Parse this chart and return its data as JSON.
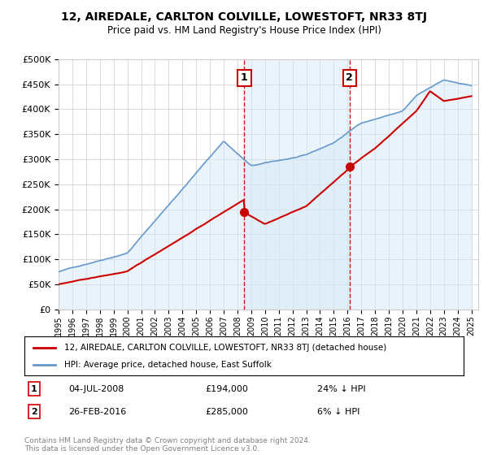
{
  "title": "12, AIREDALE, CARLTON COLVILLE, LOWESTOFT, NR33 8TJ",
  "subtitle": "Price paid vs. HM Land Registry's House Price Index (HPI)",
  "y_values": [
    0,
    50000,
    100000,
    150000,
    200000,
    250000,
    300000,
    350000,
    400000,
    450000,
    500000
  ],
  "ylim": [
    0,
    500000
  ],
  "xlim_start": 1995.0,
  "xlim_end": 2025.5,
  "marker1_x": 2008.5,
  "marker1_label": "1",
  "marker1_date": "04-JUL-2008",
  "marker1_price": "£194,000",
  "marker1_hpi": "24% ↓ HPI",
  "marker1_price_val": 194000,
  "marker2_x": 2016.15,
  "marker2_label": "2",
  "marker2_date": "26-FEB-2016",
  "marker2_price": "£285,000",
  "marker2_hpi": "6% ↓ HPI",
  "marker2_price_val": 285000,
  "legend_line1": "12, AIREDALE, CARLTON COLVILLE, LOWESTOFT, NR33 8TJ (detached house)",
  "legend_line2": "HPI: Average price, detached house, East Suffolk",
  "footer": "Contains HM Land Registry data © Crown copyright and database right 2024.\nThis data is licensed under the Open Government Licence v3.0.",
  "property_color": "#cc0000",
  "hpi_color": "#6699cc",
  "hpi_fill_color": "#d6e8f7",
  "marker_color": "#cc0000",
  "grid_color": "#cccccc",
  "background_color": "#ffffff"
}
